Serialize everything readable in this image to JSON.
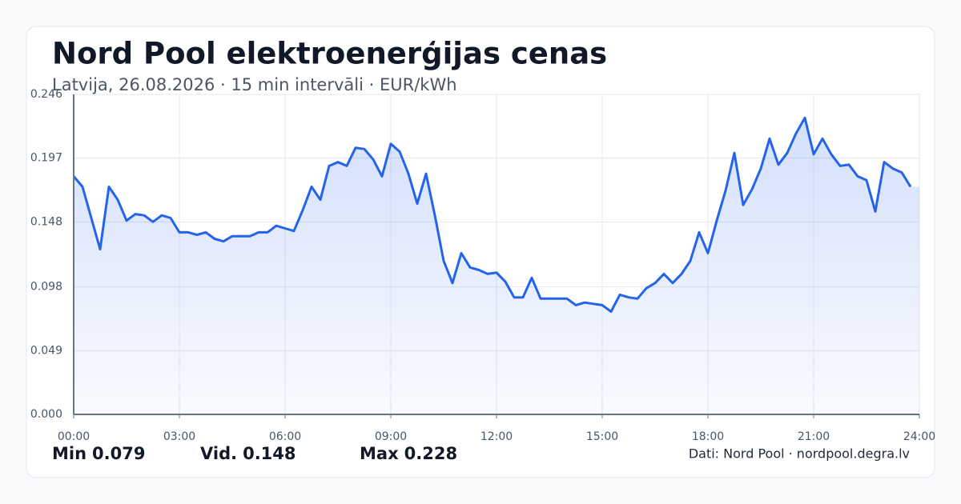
{
  "chart_data": {
    "type": "area-line",
    "title": "Nord Pool elektroenerģijas cenas",
    "subtitle": "Latvija, 26.08.2026 · 15 min intervāli · EUR/kWh",
    "x": [
      0,
      0.25,
      0.5,
      0.75,
      1,
      1.25,
      1.5,
      1.75,
      2,
      2.25,
      2.5,
      2.75,
      3,
      3.25,
      3.5,
      3.75,
      4,
      4.25,
      4.5,
      4.75,
      5,
      5.25,
      5.5,
      5.75,
      6,
      6.25,
      6.5,
      6.75,
      7,
      7.25,
      7.5,
      7.75,
      8,
      8.25,
      8.5,
      8.75,
      9,
      9.25,
      9.5,
      9.75,
      10,
      10.25,
      10.5,
      10.75,
      11,
      11.25,
      11.5,
      11.75,
      12,
      12.25,
      12.5,
      12.75,
      13,
      13.25,
      13.5,
      13.75,
      14,
      14.25,
      14.5,
      14.75,
      15,
      15.25,
      15.5,
      15.75,
      16,
      16.25,
      16.5,
      16.75,
      17,
      17.25,
      17.5,
      17.75,
      18,
      18.25,
      18.5,
      18.75,
      19,
      19.25,
      19.5,
      19.75,
      20,
      20.25,
      20.5,
      20.75,
      21,
      21.25,
      21.5,
      21.75,
      22,
      22.25,
      22.5,
      22.75,
      23,
      23.25,
      23.5,
      23.75
    ],
    "values": [
      0.183,
      0.175,
      0.151,
      0.127,
      0.175,
      0.165,
      0.149,
      0.154,
      0.153,
      0.148,
      0.153,
      0.151,
      0.14,
      0.14,
      0.138,
      0.14,
      0.135,
      0.133,
      0.137,
      0.137,
      0.137,
      0.14,
      0.14,
      0.145,
      0.143,
      0.141,
      0.157,
      0.175,
      0.165,
      0.191,
      0.194,
      0.191,
      0.205,
      0.204,
      0.196,
      0.183,
      0.208,
      0.202,
      0.185,
      0.162,
      0.185,
      0.153,
      0.118,
      0.101,
      0.124,
      0.113,
      0.111,
      0.108,
      0.109,
      0.102,
      0.09,
      0.09,
      0.105,
      0.089,
      0.089,
      0.089,
      0.089,
      0.084,
      0.086,
      0.085,
      0.084,
      0.079,
      0.092,
      0.09,
      0.089,
      0.097,
      0.101,
      0.108,
      0.101,
      0.108,
      0.118,
      0.14,
      0.124,
      0.149,
      0.172,
      0.201,
      0.161,
      0.173,
      0.189,
      0.212,
      0.192,
      0.201,
      0.216,
      0.228,
      0.2,
      0.212,
      0.2,
      0.191,
      0.192,
      0.183,
      0.18,
      0.156,
      0.194,
      0.189,
      0.186,
      0.175
    ],
    "color": "#2563eb",
    "xlim": [
      0,
      24
    ],
    "xticks": [
      {
        "value": 0,
        "label": "00:00"
      },
      {
        "value": 3,
        "label": "03:00"
      },
      {
        "value": 6,
        "label": "06:00"
      },
      {
        "value": 9,
        "label": "09:00"
      },
      {
        "value": 12,
        "label": "12:00"
      },
      {
        "value": 15,
        "label": "15:00"
      },
      {
        "value": 18,
        "label": "18:00"
      },
      {
        "value": 21,
        "label": "21:00"
      },
      {
        "value": 24,
        "label": "24:00"
      }
    ],
    "ylim": [
      0,
      0.246
    ],
    "yticks": [
      {
        "value": 0,
        "label": "0.000"
      },
      0.049,
      0.098,
      0.148,
      0.197,
      0.246
    ],
    "grid": true,
    "stats": [
      {
        "label": "Min",
        "value": 0.079
      },
      {
        "label": "Vid.",
        "value": 0.148
      },
      {
        "label": "Max",
        "value": 0.228
      }
    ],
    "source": "Dati: Nord Pool · nordpool.degra.lv"
  }
}
